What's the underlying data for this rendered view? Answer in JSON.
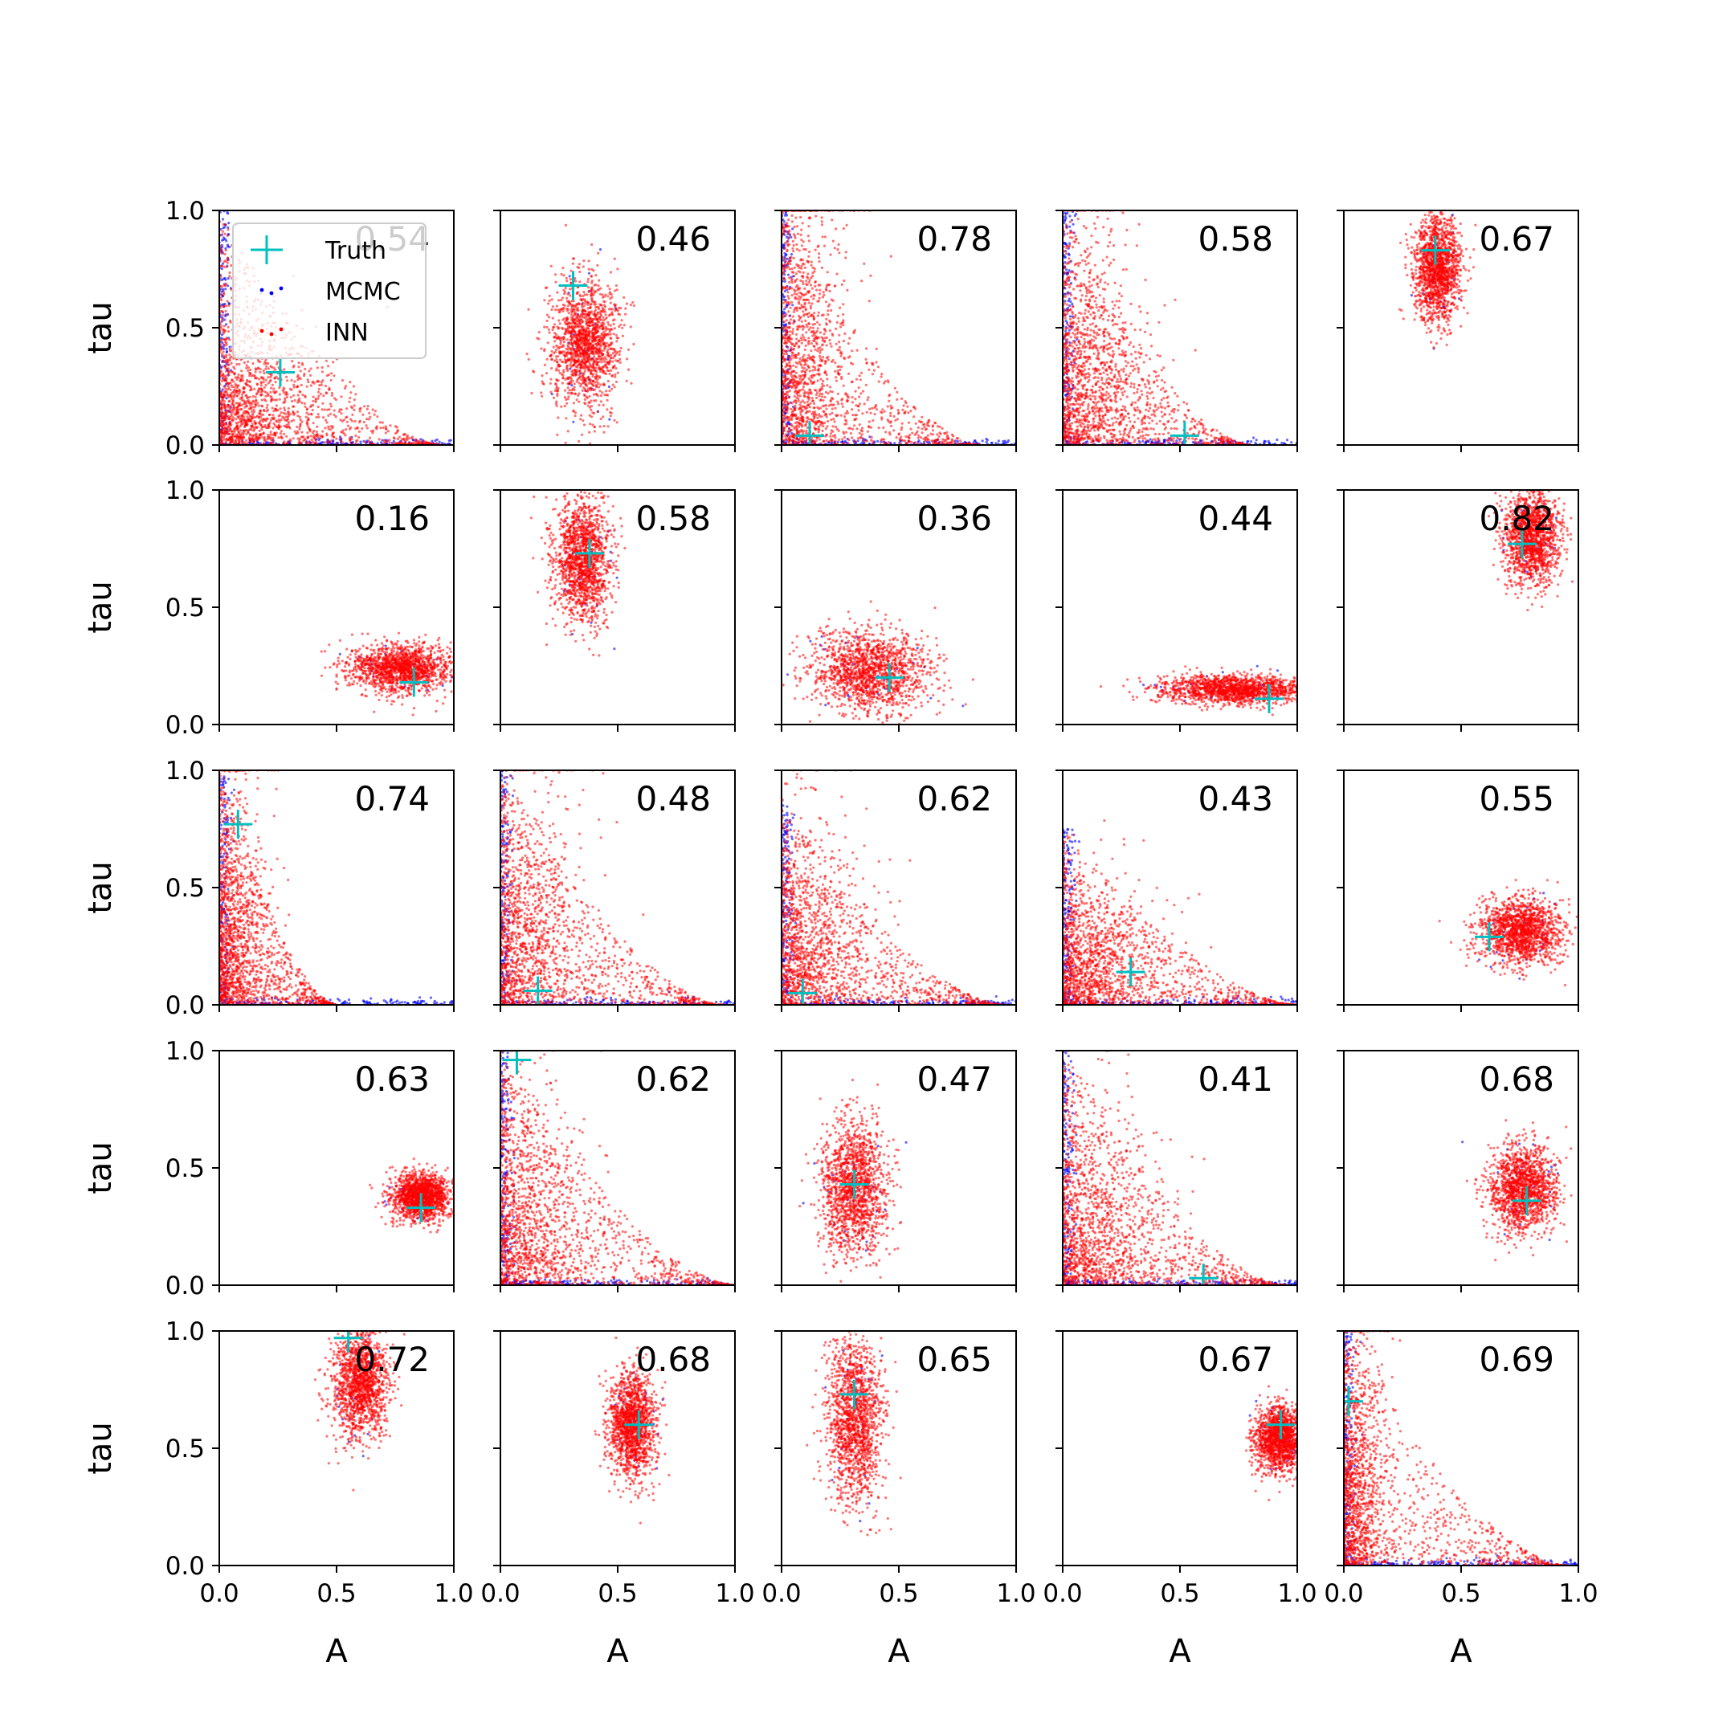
{
  "chart_data": {
    "type": "scatter",
    "layout": "5x5 grid of scatter panels",
    "xlabel": "A",
    "ylabel": "tau",
    "xlim": [
      0,
      1
    ],
    "ylim": [
      0,
      1
    ],
    "x_ticks": [
      "0.0",
      "0.5",
      "1.0"
    ],
    "y_ticks": [
      "0.0",
      "0.5",
      "1.0"
    ],
    "grid": false,
    "legend": {
      "placement": "top-left of first panel",
      "entries": [
        {
          "name": "Truth",
          "marker": "plus",
          "color": "#00bfbf"
        },
        {
          "name": "MCMC",
          "marker": "dot",
          "color": "#0000ff"
        },
        {
          "name": "INN",
          "marker": "dot",
          "color": "#ff0000"
        }
      ]
    },
    "colors": {
      "truth": "#00bfbf",
      "mcmc": "#0000ff",
      "inn": "#ff0000"
    },
    "panels": [
      {
        "label": "0.54",
        "truth": [
          0.26,
          0.31
        ],
        "inn": {
          "shape": "corner",
          "extA": 0.95,
          "extT": 1.0,
          "coreA": 0.38,
          "coreT": 0.3
        },
        "mcmc": {
          "shape": "corner"
        }
      },
      {
        "label": "0.46",
        "truth": [
          0.31,
          0.68
        ],
        "inn": {
          "shape": "blob",
          "cx": 0.36,
          "cy": 0.43,
          "sx": 0.07,
          "sy": 0.14
        }
      },
      {
        "label": "0.78",
        "truth": [
          0.12,
          0.04
        ],
        "inn": {
          "shape": "corner",
          "extA": 0.85,
          "extT": 1.0,
          "coreA": 0.25,
          "coreT": 0.7
        },
        "mcmc": {
          "shape": "corner"
        }
      },
      {
        "label": "0.58",
        "truth": [
          0.52,
          0.04
        ],
        "inn": {
          "shape": "corner",
          "extA": 0.8,
          "extT": 1.0,
          "coreA": 0.3,
          "coreT": 0.55
        },
        "mcmc": {
          "shape": "corner"
        }
      },
      {
        "label": "0.67",
        "truth": [
          0.39,
          0.83
        ],
        "inn": {
          "shape": "blob",
          "cx": 0.4,
          "cy": 0.75,
          "sx": 0.05,
          "sy": 0.11
        }
      },
      {
        "label": "0.16",
        "truth": [
          0.83,
          0.18
        ],
        "inn": {
          "shape": "blob",
          "cx": 0.78,
          "cy": 0.24,
          "sx": 0.11,
          "sy": 0.05
        }
      },
      {
        "label": "0.58",
        "truth": [
          0.38,
          0.73
        ],
        "inn": {
          "shape": "blob",
          "cx": 0.35,
          "cy": 0.7,
          "sx": 0.06,
          "sy": 0.13
        }
      },
      {
        "label": "0.36",
        "truth": [
          0.46,
          0.2
        ],
        "inn": {
          "shape": "blob",
          "cx": 0.38,
          "cy": 0.22,
          "sx": 0.13,
          "sy": 0.09
        }
      },
      {
        "label": "0.44",
        "truth": [
          0.88,
          0.11
        ],
        "inn": {
          "shape": "blob",
          "cx": 0.73,
          "cy": 0.15,
          "sx": 0.16,
          "sy": 0.03
        }
      },
      {
        "label": "0.82",
        "truth": [
          0.76,
          0.77
        ],
        "inn": {
          "shape": "blob",
          "cx": 0.8,
          "cy": 0.8,
          "sx": 0.06,
          "sy": 0.1
        }
      },
      {
        "label": "0.74",
        "truth": [
          0.08,
          0.77
        ],
        "inn": {
          "shape": "corner",
          "extA": 0.5,
          "extT": 1.0,
          "coreA": 0.18,
          "coreT": 0.55
        },
        "mcmc": {
          "shape": "corner"
        }
      },
      {
        "label": "0.48",
        "truth": [
          0.16,
          0.06
        ],
        "inn": {
          "shape": "corner",
          "extA": 0.95,
          "extT": 1.0,
          "coreA": 0.3,
          "coreT": 0.55
        },
        "mcmc": {
          "shape": "corner"
        }
      },
      {
        "label": "0.62",
        "truth": [
          0.09,
          0.05
        ],
        "inn": {
          "shape": "corner",
          "extA": 0.95,
          "extT": 0.85,
          "coreA": 0.3,
          "coreT": 0.45
        },
        "mcmc": {
          "shape": "corner"
        }
      },
      {
        "label": "0.43",
        "truth": [
          0.29,
          0.14
        ],
        "inn": {
          "shape": "corner",
          "extA": 1.0,
          "extT": 0.75,
          "coreA": 0.35,
          "coreT": 0.3
        },
        "mcmc": {
          "shape": "corner"
        }
      },
      {
        "label": "0.55",
        "truth": [
          0.62,
          0.29
        ],
        "inn": {
          "shape": "blob",
          "cx": 0.76,
          "cy": 0.31,
          "sx": 0.09,
          "sy": 0.07
        }
      },
      {
        "label": "0.63",
        "truth": [
          0.86,
          0.33
        ],
        "inn": {
          "shape": "blob",
          "cx": 0.86,
          "cy": 0.38,
          "sx": 0.06,
          "sy": 0.05
        }
      },
      {
        "label": "0.62",
        "truth": [
          0.07,
          0.96
        ],
        "inn": {
          "shape": "corner",
          "extA": 1.0,
          "extT": 1.0,
          "coreA": 0.3,
          "coreT": 0.5
        },
        "mcmc": {
          "shape": "corner"
        }
      },
      {
        "label": "0.47",
        "truth": [
          0.31,
          0.43
        ],
        "inn": {
          "shape": "blob",
          "cx": 0.31,
          "cy": 0.42,
          "sx": 0.07,
          "sy": 0.14
        }
      },
      {
        "label": "0.41",
        "truth": [
          0.6,
          0.03
        ],
        "inn": {
          "shape": "corner",
          "extA": 0.95,
          "extT": 1.0,
          "coreA": 0.35,
          "coreT": 0.45
        },
        "mcmc": {
          "shape": "corner"
        }
      },
      {
        "label": "0.68",
        "truth": [
          0.78,
          0.36
        ],
        "inn": {
          "shape": "blob",
          "cx": 0.76,
          "cy": 0.41,
          "sx": 0.07,
          "sy": 0.09
        }
      },
      {
        "label": "0.72",
        "truth": [
          0.55,
          0.97
        ],
        "inn": {
          "shape": "blob",
          "cx": 0.6,
          "cy": 0.78,
          "sx": 0.06,
          "sy": 0.12
        }
      },
      {
        "label": "0.68",
        "truth": [
          0.59,
          0.6
        ],
        "inn": {
          "shape": "blob",
          "cx": 0.56,
          "cy": 0.6,
          "sx": 0.05,
          "sy": 0.11
        }
      },
      {
        "label": "0.65",
        "truth": [
          0.31,
          0.73
        ],
        "inn": {
          "shape": "blob",
          "cx": 0.31,
          "cy": 0.62,
          "sx": 0.06,
          "sy": 0.17
        }
      },
      {
        "label": "0.67",
        "truth": [
          0.93,
          0.6
        ],
        "inn": {
          "shape": "blob",
          "cx": 0.92,
          "cy": 0.54,
          "sx": 0.05,
          "sy": 0.07
        }
      },
      {
        "label": "0.69",
        "truth": [
          0.02,
          0.7
        ],
        "inn": {
          "shape": "corner",
          "extA": 0.95,
          "extT": 1.0,
          "coreA": 0.15,
          "coreT": 0.6
        },
        "mcmc": {
          "shape": "corner"
        }
      }
    ]
  }
}
